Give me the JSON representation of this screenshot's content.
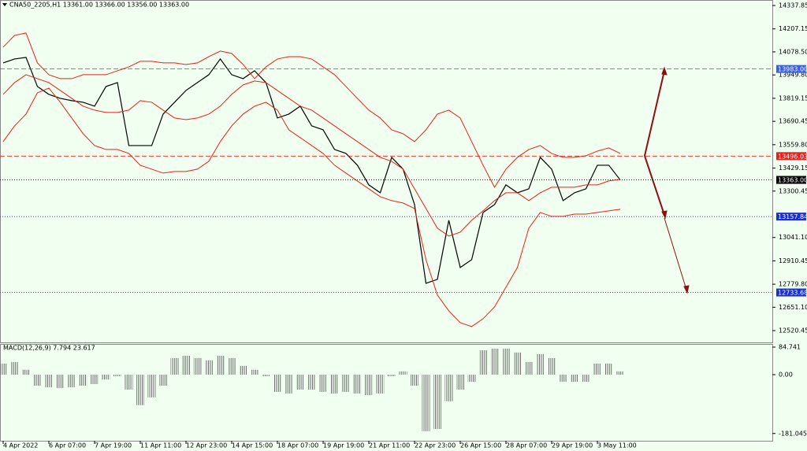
{
  "chart_data": [
    {
      "type": "line",
      "title": "CNA50_2205,H1  13361.00 13366.00 13356.00 13363.00",
      "categories": [
        "4 Apr 2022",
        null,
        null,
        null,
        "6 Apr 07:00",
        null,
        null,
        null,
        "7 Apr 19:00",
        null,
        null,
        null,
        "11 Apr 11:00",
        null,
        null,
        null,
        "12 Apr 23:00",
        null,
        null,
        null,
        "14 Apr 15:00",
        null,
        null,
        null,
        "18 Apr 07:00",
        null,
        null,
        null,
        "19 Apr 19:00",
        null,
        null,
        null,
        "21 Apr 11:00",
        null,
        null,
        null,
        "22 Apr 23:00",
        null,
        null,
        null,
        "26 Apr 15:00",
        null,
        null,
        null,
        "28 Apr 07:00",
        null,
        null,
        null,
        "29 Apr 19:00",
        null,
        null,
        null,
        "3 May 11:00",
        null,
        null
      ],
      "series": [
        {
          "color": "#000000",
          "values": [
            14017,
            14039,
            14048,
            13885,
            13841,
            13819,
            13806,
            13797,
            13775,
            13885,
            13907,
            13555,
            13555,
            13555,
            13731,
            13797,
            13863,
            13907,
            13951,
            14039,
            13951,
            13929,
            13973,
            13907,
            13709,
            13731,
            13775,
            13665,
            13643,
            13533,
            13511,
            13445,
            13335,
            13291,
            13489,
            13423,
            13225,
            12785,
            12807,
            13137,
            12873,
            12917,
            13181,
            13225,
            13335,
            13291,
            13313,
            13489,
            13423,
            13247,
            13291,
            13313,
            13445,
            13445,
            13363
          ]
        },
        {
          "color": "#e8201c",
          "values": [
            14105,
            14171,
            14184,
            14017,
            13951,
            13929,
            13929,
            13951,
            13951,
            13951,
            13973,
            13995,
            14026,
            14026,
            14017,
            14017,
            14008,
            14017,
            14052,
            14083,
            14070,
            14008,
            13929,
            13995,
            14039,
            14052,
            14052,
            14039,
            13995,
            13951,
            13885,
            13819,
            13753,
            13709,
            13643,
            13621,
            13577,
            13643,
            13731,
            13753,
            13709,
            13577,
            13445,
            13322,
            13423,
            13489,
            13533,
            13555,
            13511,
            13489,
            13489,
            13498,
            13524,
            13542,
            13511
          ]
        },
        {
          "color": "#e8201c",
          "values": [
            13841,
            13907,
            13951,
            13929,
            13907,
            13863,
            13819,
            13775,
            13753,
            13740,
            13740,
            13753,
            13806,
            13797,
            13753,
            13709,
            13700,
            13709,
            13731,
            13775,
            13841,
            13894,
            13916,
            13907,
            13863,
            13819,
            13775,
            13753,
            13709,
            13665,
            13621,
            13577,
            13533,
            13489,
            13467,
            13423,
            13313,
            13203,
            13093,
            13049,
            13071,
            13137,
            13190,
            13247,
            13291,
            13291,
            13247,
            13291,
            13322,
            13322,
            13322,
            13335,
            13335,
            13357,
            13366
          ]
        },
        {
          "color": "#e8201c",
          "values": [
            13577,
            13665,
            13731,
            13850,
            13876,
            13797,
            13709,
            13621,
            13555,
            13533,
            13533,
            13511,
            13445,
            13423,
            13401,
            13410,
            13410,
            13423,
            13467,
            13577,
            13665,
            13731,
            13775,
            13797,
            13753,
            13643,
            13599,
            13555,
            13511,
            13445,
            13401,
            13357,
            13313,
            13269,
            13247,
            13234,
            13203,
            12917,
            12719,
            12631,
            12565,
            12543,
            12587,
            12653,
            12763,
            12873,
            13093,
            13181,
            13159,
            13159,
            13172,
            13172,
            13181,
            13190,
            13199
          ]
        }
      ],
      "ylim": [
        12454.65,
        14368.65
      ],
      "yticks": [
        14337.85,
        14207.15,
        {
          "value": 14078.5,
          "label": "14078.50"
        },
        {
          "value": 13949.8,
          "label": "13949.80"
        },
        13819.15,
        13690.45,
        {
          "value": 13559.8,
          "label": "13559.80"
        },
        13429.15,
        13300.45,
        {
          "value": 13041.1,
          "label": "13041.10"
        },
        12910.45,
        {
          "value": 12779.8,
          "label": "12779.80"
        },
        {
          "value": 12651.1,
          "label": "12651.10"
        },
        12520.45
      ],
      "levels": [
        {
          "value": 13983,
          "label": "13983.00",
          "color": "#3a5fe0"
        },
        {
          "value": 13496.03,
          "color": "#e8201c"
        },
        {
          "value": 13363,
          "label": "13363.00",
          "color": "#000000"
        },
        {
          "value": 13157.84,
          "color": "#1a2fd0"
        },
        {
          "value": 12733.68,
          "color": "#1a2fd0"
        }
      ]
    },
    {
      "type": "bar",
      "title": "MACD(12,26,9) 7.794 23.617",
      "color": "#6b6b6b",
      "values": [
        34,
        39,
        15,
        -34,
        -39,
        -41,
        -39,
        -34,
        -29,
        -15,
        -5,
        -46,
        -94,
        -70,
        -34,
        51,
        58,
        51,
        44,
        58,
        51,
        27,
        15,
        -5,
        -53,
        -58,
        -46,
        -46,
        -53,
        -58,
        -53,
        -58,
        -63,
        -58,
        -5,
        10,
        -34,
        -174,
        -167,
        -82,
        -46,
        -22,
        75,
        80,
        80,
        68,
        39,
        63,
        51,
        -22,
        -22,
        -22,
        34,
        34,
        10
      ],
      "ylim": [
        -203.4,
        94.4
      ],
      "yticks": [
        84.741,
        {
          "value": 0,
          "label": "0.00"
        },
        -181.045
      ]
    }
  ]
}
